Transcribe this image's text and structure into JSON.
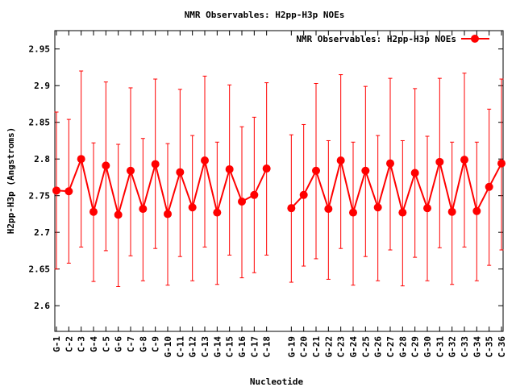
{
  "chart_data": {
    "type": "line",
    "title": "NMR Observables: H2pp-H3p NOEs",
    "xlabel": "Nucleotide",
    "ylabel": "H2pp-H3p (Angstroms)",
    "ylim": [
      2.565,
      2.975
    ],
    "yticks": [
      "2.6",
      "2.65",
      "2.7",
      "2.75",
      "2.8",
      "2.85",
      "2.9",
      "2.95"
    ],
    "legend_position": "top-right",
    "color": "#ff0000",
    "grid": false,
    "error_bars": true,
    "categories": [
      "G-1",
      "C-2",
      "C-3",
      "G-4",
      "C-5",
      "G-6",
      "C-7",
      "G-8",
      "C-9",
      "G-10",
      "C-11",
      "G-12",
      "C-13",
      "G-14",
      "C-15",
      "G-16",
      "C-17",
      "C-18",
      "G-19",
      "C-20",
      "C-21",
      "G-22",
      "C-23",
      "G-24",
      "C-25",
      "G-26",
      "C-27",
      "G-28",
      "C-29",
      "G-30",
      "C-31",
      "G-32",
      "C-33",
      "G-34",
      "C-35",
      "C-36"
    ],
    "gap_after_index": 17,
    "series": [
      {
        "name": "NMR Observables: H2pp-H3p NOEs",
        "values": [
          2.757,
          2.756,
          2.8,
          2.728,
          2.791,
          2.724,
          2.784,
          2.732,
          2.793,
          2.725,
          2.782,
          2.734,
          2.798,
          2.727,
          2.786,
          2.742,
          2.751,
          2.787,
          2.733,
          2.751,
          2.784,
          2.732,
          2.798,
          2.727,
          2.784,
          2.734,
          2.794,
          2.727,
          2.781,
          2.733,
          2.796,
          2.728,
          2.799,
          2.729,
          2.762,
          2.794
        ],
        "lower": [
          2.65,
          2.658,
          2.68,
          2.633,
          2.675,
          2.626,
          2.668,
          2.634,
          2.678,
          2.628,
          2.667,
          2.634,
          2.68,
          2.629,
          2.669,
          2.638,
          2.645,
          2.669,
          2.632,
          2.654,
          2.664,
          2.636,
          2.678,
          2.628,
          2.667,
          2.634,
          2.676,
          2.627,
          2.666,
          2.634,
          2.679,
          2.629,
          2.68,
          2.634,
          2.655,
          2.676
        ],
        "upper": [
          2.864,
          2.854,
          2.92,
          2.822,
          2.905,
          2.82,
          2.897,
          2.828,
          2.909,
          2.821,
          2.895,
          2.832,
          2.913,
          2.823,
          2.901,
          2.844,
          2.857,
          2.904,
          2.833,
          2.847,
          2.903,
          2.825,
          2.915,
          2.823,
          2.899,
          2.832,
          2.91,
          2.825,
          2.896,
          2.831,
          2.91,
          2.823,
          2.917,
          2.823,
          2.868,
          2.909
        ]
      }
    ]
  }
}
